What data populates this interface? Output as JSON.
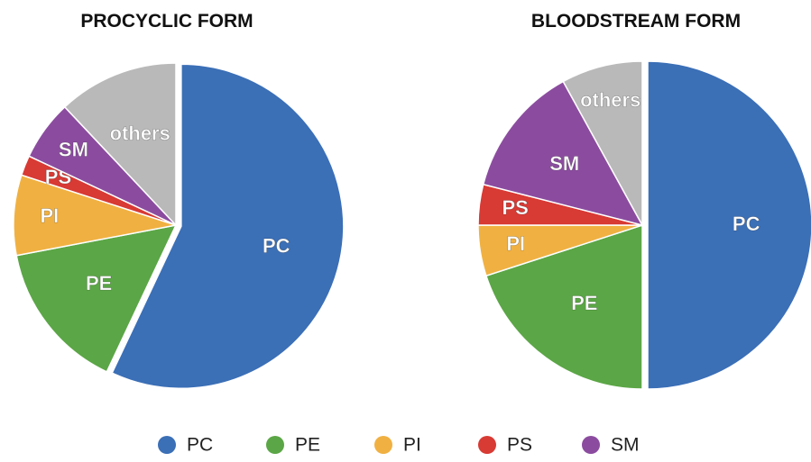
{
  "chart_data": [
    {
      "type": "pie",
      "title": "PROCYCLIC FORM",
      "categories": [
        "PC",
        "PE",
        "PI",
        "PS",
        "SM",
        "others"
      ],
      "values": [
        57,
        15,
        8,
        2,
        6,
        12
      ],
      "colors": [
        "#3b6fb6",
        "#5ba646",
        "#f0b142",
        "#d83a34",
        "#8b4c9f",
        "#b9b9b9"
      ]
    },
    {
      "type": "pie",
      "title": "BLOODSTREAM FORM",
      "categories": [
        "PC",
        "PE",
        "PI",
        "PS",
        "SM",
        "others"
      ],
      "values": [
        50,
        20,
        5,
        4,
        13,
        8
      ],
      "colors": [
        "#3b6fb6",
        "#5ba646",
        "#f0b142",
        "#d83a34",
        "#8b4c9f",
        "#b9b9b9"
      ]
    }
  ]
}
